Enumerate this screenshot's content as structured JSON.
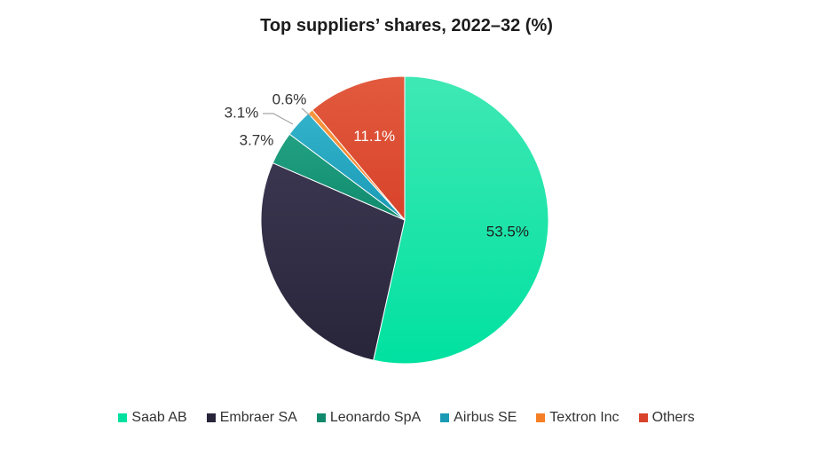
{
  "chart_data": {
    "type": "pie",
    "title": "Top suppliers’ shares, 2022–32 (%)",
    "slices": [
      {
        "name": "Saab AB",
        "value": 53.5,
        "label": "53.5%",
        "color": "#00E1A0",
        "highlight": "#3FE8B4"
      },
      {
        "name": "Embraer SA",
        "value": 28.0,
        "label": "",
        "color": "#28253A",
        "highlight": "#3A3650"
      },
      {
        "name": "Leonardo SpA",
        "value": 3.7,
        "label": "3.7%",
        "color": "#10896C",
        "highlight": "#22A282"
      },
      {
        "name": "Airbus SE",
        "value": 3.1,
        "label": "3.1%",
        "color": "#1A9AB5",
        "highlight": "#33B2CB"
      },
      {
        "name": "Textron Inc",
        "value": 0.6,
        "label": "0.6%",
        "color": "#F57F25",
        "highlight": "#F7963F"
      },
      {
        "name": "Others",
        "value": 11.1,
        "label": "11.1%",
        "color": "#D8432A",
        "highlight": "#E25A3E"
      }
    ],
    "start_angle": "12 o'clock",
    "direction": "clockwise",
    "legend_position": "bottom"
  }
}
